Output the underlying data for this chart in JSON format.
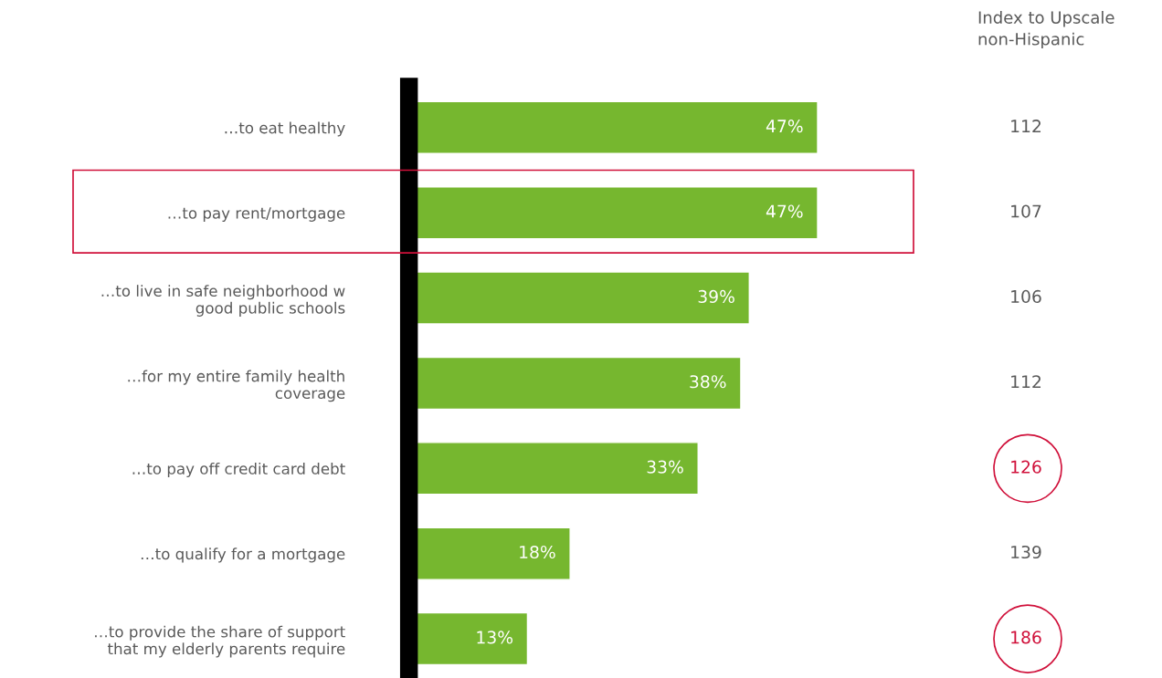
{
  "chart_data": {
    "type": "bar",
    "orientation": "horizontal",
    "categories": [
      "…to eat healthy",
      "…to pay rent/mortgage",
      "…to live in safe neighborhood w\ngood public schools",
      "…for my entire family health\ncoverage",
      "…to pay off credit card debt",
      "…to qualify for a mortgage",
      "…to provide the share of support\nthat my elderly parents require"
    ],
    "values": [
      47,
      47,
      39,
      38,
      33,
      18,
      13
    ],
    "value_labels": [
      "47%",
      "47%",
      "39%",
      "38%",
      "33%",
      "18%",
      "13%"
    ],
    "color": "#76b72f",
    "grid": false,
    "annotations": [
      "Index to Upscale\nnon-Hispanic",
      "112",
      "107",
      "106",
      "112",
      "126",
      "139",
      "186"
    ]
  }
}
